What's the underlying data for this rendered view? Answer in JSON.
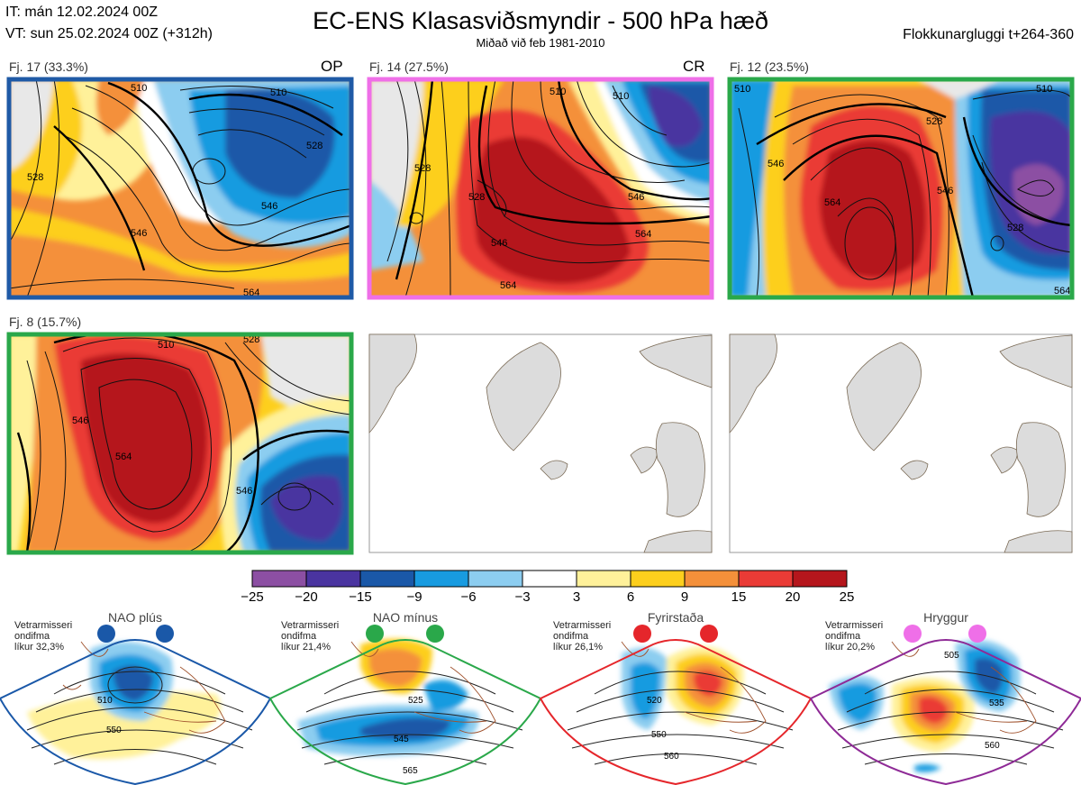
{
  "header": {
    "it": "IT: mán 12.02.2024 00Z",
    "vt": "VT: sun 25.02.2024 00Z  (+312h)",
    "title": "EC-ENS Klasasviðsmyndir - 500 hPa hæð",
    "subtitle": "Miðað við feb 1981-2010",
    "window": "Flokkunargluggi t+264-360"
  },
  "panels": [
    {
      "label": "Fj. 17 (33.3%)",
      "tag": "OP",
      "frame": "#1f5aa6",
      "regime": "NAO plús",
      "contours": [
        "510",
        "528",
        "546",
        "564",
        "510",
        "528",
        "546"
      ]
    },
    {
      "label": "Fj. 14 (27.5%)",
      "tag": "CR",
      "frame": "#ef6fe8",
      "regime": "Hryggur",
      "contours": [
        "510",
        "528",
        "546",
        "564",
        "510",
        "546",
        "564",
        "528"
      ]
    },
    {
      "label": "Fj. 12 (23.5%)",
      "tag": "",
      "frame": "#2aa84a",
      "regime": "NAO mínus",
      "contours": [
        "510",
        "528",
        "546",
        "564",
        "510",
        "528",
        "546",
        "564"
      ]
    },
    {
      "label": "Fj. 8 (15.7%)",
      "tag": "",
      "frame": "#2aa84a",
      "regime": "NAO mínus",
      "contours": [
        "510",
        "528",
        "546",
        "564",
        "546"
      ]
    }
  ],
  "colorbar": {
    "colors": [
      "#8c4fa3",
      "#4a34a0",
      "#1a58a8",
      "#189be0",
      "#8ccdf0",
      "#ffffff",
      "#fff19a",
      "#fdcf1d",
      "#f4903a",
      "#ea3b36",
      "#b5161c"
    ],
    "ticks": [
      "−25",
      "−20",
      "−15",
      "−9",
      "−6",
      "−3",
      "3",
      "6",
      "9",
      "15",
      "20",
      "25"
    ]
  },
  "regimes": [
    {
      "name": "NAO plús",
      "note": [
        "Vetrarmisseri",
        "ondifma",
        "líkur 32,3%"
      ],
      "color": "#1a58a8",
      "contours": [
        "510",
        "550"
      ]
    },
    {
      "name": "NAO mínus",
      "note": [
        "Vetrarmisseri",
        "ondifma",
        "líkur 21,4%"
      ],
      "color": "#2aa84a",
      "contours": [
        "525",
        "545",
        "565"
      ]
    },
    {
      "name": "Fyrirstaða",
      "note": [
        "Vetrarmisseri",
        "ondifma",
        "líkur 26,1%"
      ],
      "color": "#e5262b",
      "contours": [
        "520",
        "550",
        "560"
      ]
    },
    {
      "name": "Hryggur",
      "note": [
        "Vetrarmisseri",
        "ondifma",
        "líkur 20,2%"
      ],
      "color": "#ef6fe8",
      "contours": [
        "505",
        "535",
        "560"
      ]
    }
  ]
}
